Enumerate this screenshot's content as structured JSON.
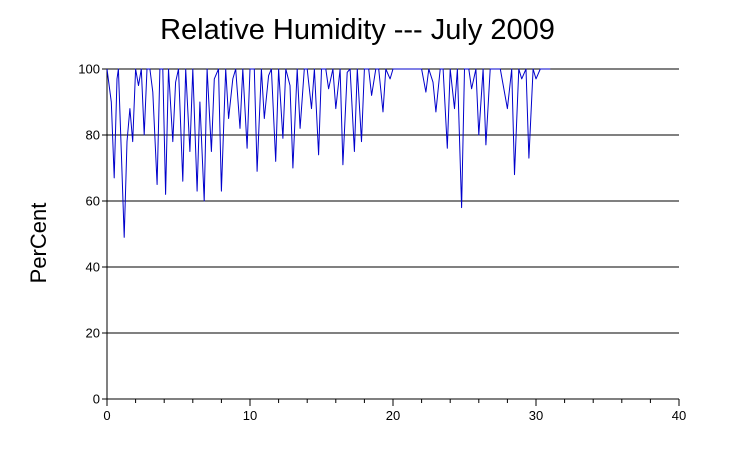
{
  "chart_data": {
    "type": "line",
    "title": "Relative Humidity --- July 2009",
    "ylabel": "PerCent",
    "xlabel": "",
    "xlim": [
      0,
      40
    ],
    "ylim": [
      0,
      100
    ],
    "x_ticks": [
      "0",
      "10",
      "20",
      "30",
      "40"
    ],
    "y_ticks": [
      "0",
      "20",
      "40",
      "60",
      "80",
      "100"
    ],
    "grid": "horizontal",
    "series_color": "#0000cc",
    "series": [
      {
        "x": [
          0.0,
          0.3,
          0.5,
          0.7,
          0.8,
          1.0,
          1.2,
          1.4,
          1.6,
          1.8,
          2.0,
          2.2,
          2.4,
          2.6,
          2.8,
          3.0,
          3.2,
          3.5,
          3.7,
          3.9,
          4.1,
          4.3,
          4.6,
          4.8,
          5.0,
          5.3,
          5.5,
          5.8,
          6.0,
          6.3,
          6.5,
          6.8,
          7.0,
          7.3,
          7.5,
          7.8,
          8.0,
          8.3,
          8.5,
          8.8,
          9.0,
          9.3,
          9.5,
          9.8,
          10.0,
          10.3,
          10.5,
          10.8,
          11.0,
          11.3,
          11.5,
          11.8,
          12.0,
          12.3,
          12.5,
          12.8,
          13.0,
          13.3,
          13.5,
          13.8,
          14.0,
          14.3,
          14.5,
          14.8,
          15.0,
          15.3,
          15.5,
          15.8,
          16.0,
          16.3,
          16.5,
          16.8,
          17.0,
          17.3,
          17.5,
          17.8,
          18.0,
          18.3,
          18.5,
          18.8,
          19.0,
          19.3,
          19.5,
          19.8,
          20.0,
          20.5,
          21.0,
          21.5,
          22.0,
          22.3,
          22.5,
          22.8,
          23.0,
          23.3,
          23.5,
          23.8,
          24.0,
          24.3,
          24.5,
          24.8,
          25.0,
          25.3,
          25.5,
          25.8,
          26.0,
          26.3,
          26.5,
          26.8,
          27.0,
          27.5,
          28.0,
          28.3,
          28.5,
          28.8,
          29.0,
          29.3,
          29.5,
          29.8,
          30.0,
          30.3,
          30.5,
          30.8,
          31.0
        ],
        "values": [
          100,
          90,
          67,
          97,
          100,
          75,
          49,
          78,
          88,
          78,
          100,
          95,
          100,
          80,
          100,
          100,
          93,
          65,
          100,
          100,
          62,
          100,
          78,
          96,
          100,
          66,
          100,
          75,
          100,
          63,
          90,
          60,
          100,
          75,
          97,
          100,
          63,
          100,
          85,
          97,
          100,
          82,
          100,
          76,
          100,
          100,
          69,
          100,
          85,
          98,
          100,
          72,
          100,
          79,
          100,
          95,
          70,
          100,
          82,
          100,
          100,
          88,
          100,
          74,
          100,
          100,
          94,
          100,
          88,
          100,
          71,
          99,
          100,
          75,
          100,
          78,
          100,
          100,
          92,
          100,
          100,
          87,
          100,
          97,
          100,
          100,
          100,
          100,
          100,
          93,
          100,
          96,
          87,
          100,
          100,
          76,
          100,
          88,
          100,
          58,
          100,
          100,
          94,
          100,
          80,
          100,
          77,
          100,
          100,
          100,
          88,
          100,
          68,
          100,
          97,
          100,
          73,
          100,
          97,
          100,
          100,
          100,
          100
        ]
      }
    ]
  }
}
